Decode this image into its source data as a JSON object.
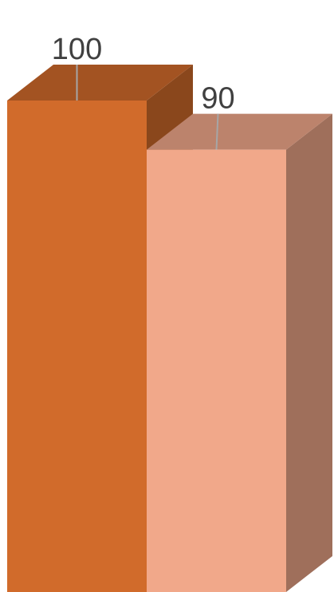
{
  "chart_data": {
    "type": "bar",
    "style": "3d-column",
    "categories": [
      "",
      ""
    ],
    "values": [
      100,
      90
    ],
    "data_labels": [
      "100",
      "90"
    ],
    "series": [
      {
        "values": [
          100,
          90
        ],
        "colors": [
          "#D16B2B",
          "#F1A88A"
        ]
      }
    ],
    "title": "",
    "xlabel": "",
    "ylabel": "",
    "grid": false,
    "legend": "none"
  }
}
